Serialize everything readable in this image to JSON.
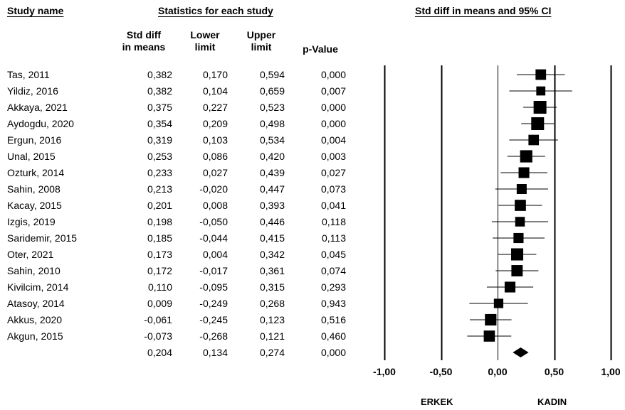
{
  "headers": {
    "study_name": "Study name",
    "statistics": "Statistics for each study",
    "plot": "Std diff in means and 95% CI",
    "std_diff_l1": "Std diff",
    "std_diff_l2": "in means",
    "lower_l1": "Lower",
    "lower_l2": "limit",
    "upper_l1": "Upper",
    "upper_l2": "limit",
    "pvalue": "p-Value"
  },
  "direction_labels": {
    "left": "ERKEK",
    "right": "KADIN"
  },
  "chart_data": {
    "type": "forest",
    "xlim": [
      -1.0,
      1.0
    ],
    "xticks": [
      -1.0,
      -0.5,
      0.0,
      0.5,
      1.0
    ],
    "xtick_labels": [
      "-1,00",
      "-0,50",
      "0,00",
      "0,50",
      "1,00"
    ],
    "reference_lines": [
      -1.0,
      -0.5,
      0.0,
      0.5,
      1.0
    ],
    "studies": [
      {
        "name": "Tas, 2011",
        "est": 0.382,
        "lower": 0.17,
        "upper": 0.594,
        "p": 0.0,
        "est_text": "0,382",
        "lower_text": "0,170",
        "upper_text": "0,594",
        "p_text": "0,000"
      },
      {
        "name": "Yildiz, 2016",
        "est": 0.382,
        "lower": 0.104,
        "upper": 0.659,
        "p": 0.007,
        "est_text": "0,382",
        "lower_text": "0,104",
        "upper_text": "0,659",
        "p_text": "0,007"
      },
      {
        "name": "Akkaya, 2021",
        "est": 0.375,
        "lower": 0.227,
        "upper": 0.523,
        "p": 0.0,
        "est_text": "0,375",
        "lower_text": "0,227",
        "upper_text": "0,523",
        "p_text": "0,000"
      },
      {
        "name": "Aydogdu, 2020",
        "est": 0.354,
        "lower": 0.209,
        "upper": 0.498,
        "p": 0.0,
        "est_text": "0,354",
        "lower_text": "0,209",
        "upper_text": "0,498",
        "p_text": "0,000"
      },
      {
        "name": "Ergun, 2016",
        "est": 0.319,
        "lower": 0.103,
        "upper": 0.534,
        "p": 0.004,
        "est_text": "0,319",
        "lower_text": "0,103",
        "upper_text": "0,534",
        "p_text": "0,004"
      },
      {
        "name": "Unal, 2015",
        "est": 0.253,
        "lower": 0.086,
        "upper": 0.42,
        "p": 0.003,
        "est_text": "0,253",
        "lower_text": "0,086",
        "upper_text": "0,420",
        "p_text": "0,003"
      },
      {
        "name": "Ozturk, 2014",
        "est": 0.233,
        "lower": 0.027,
        "upper": 0.439,
        "p": 0.027,
        "est_text": "0,233",
        "lower_text": "0,027",
        "upper_text": "0,439",
        "p_text": "0,027"
      },
      {
        "name": "Sahin, 2008",
        "est": 0.213,
        "lower": -0.02,
        "upper": 0.447,
        "p": 0.073,
        "est_text": "0,213",
        "lower_text": "-0,020",
        "upper_text": "0,447",
        "p_text": "0,073"
      },
      {
        "name": "Kacay, 2015",
        "est": 0.201,
        "lower": 0.008,
        "upper": 0.393,
        "p": 0.041,
        "est_text": "0,201",
        "lower_text": "0,008",
        "upper_text": "0,393",
        "p_text": "0,041"
      },
      {
        "name": "Izgis, 2019",
        "est": 0.198,
        "lower": -0.05,
        "upper": 0.446,
        "p": 0.118,
        "est_text": "0,198",
        "lower_text": "-0,050",
        "upper_text": "0,446",
        "p_text": "0,118"
      },
      {
        "name": "Saridemir, 2015",
        "est": 0.185,
        "lower": -0.044,
        "upper": 0.415,
        "p": 0.113,
        "est_text": "0,185",
        "lower_text": "-0,044",
        "upper_text": "0,415",
        "p_text": "0,113"
      },
      {
        "name": "Oter, 2021",
        "est": 0.173,
        "lower": 0.004,
        "upper": 0.342,
        "p": 0.045,
        "est_text": "0,173",
        "lower_text": "0,004",
        "upper_text": "0,342",
        "p_text": "0,045"
      },
      {
        "name": "Sahin, 2010",
        "est": 0.172,
        "lower": -0.017,
        "upper": 0.361,
        "p": 0.074,
        "est_text": "0,172",
        "lower_text": "-0,017",
        "upper_text": "0,361",
        "p_text": "0,074"
      },
      {
        "name": "Kivilcim, 2014",
        "est": 0.11,
        "lower": -0.095,
        "upper": 0.315,
        "p": 0.293,
        "est_text": "0,110",
        "lower_text": "-0,095",
        "upper_text": "0,315",
        "p_text": "0,293"
      },
      {
        "name": "Atasoy, 2014",
        "est": 0.009,
        "lower": -0.249,
        "upper": 0.268,
        "p": 0.943,
        "est_text": "0,009",
        "lower_text": "-0,249",
        "upper_text": "0,268",
        "p_text": "0,943"
      },
      {
        "name": "Akkus, 2020",
        "est": -0.061,
        "lower": -0.245,
        "upper": 0.123,
        "p": 0.516,
        "est_text": "-0,061",
        "lower_text": "-0,245",
        "upper_text": "0,123",
        "p_text": "0,516"
      },
      {
        "name": "Akgun, 2015",
        "est": -0.073,
        "lower": -0.268,
        "upper": 0.121,
        "p": 0.46,
        "est_text": "-0,073",
        "lower_text": "-0,268",
        "upper_text": "0,121",
        "p_text": "0,460"
      }
    ],
    "summary": {
      "est": 0.204,
      "lower": 0.134,
      "upper": 0.274,
      "p": 0.0,
      "est_text": "0,204",
      "lower_text": "0,134",
      "upper_text": "0,274",
      "p_text": "0,000"
    }
  }
}
